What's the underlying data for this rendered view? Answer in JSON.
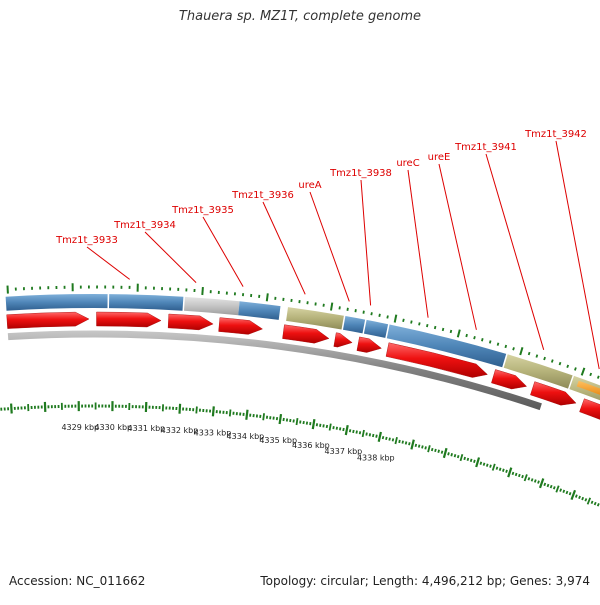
{
  "title": "Thauera sp. MZ1T, complete genome",
  "footer": {
    "accession": "Accession: NC_011662",
    "summary": "Topology: circular; Length: 4,496,212 bp; Genes: 3,974"
  },
  "scale_labels": [
    "4329 kbp",
    "4330 kbp",
    "4331 kbp",
    "4332 kbp",
    "4333 kbp",
    "4334 kbp",
    "4335 kbp",
    "4336 kbp",
    "4337 kbp",
    "4338 kbp"
  ],
  "gene_labels": [
    "Tmz1t_3933",
    "Tmz1t_3934",
    "Tmz1t_3935",
    "Tmz1t_3936",
    "ureA",
    "Tmz1t_3938",
    "ureC",
    "ureE",
    "Tmz1t_3941",
    "Tmz1t_3942"
  ],
  "colors": {
    "cds_feature": "#4f86b8",
    "gene_feature": "#b5b27a",
    "misc_feature": "#c0c0c0",
    "highlight_feature": "#f08c00",
    "orf_arrow": "#ee1111",
    "backbone": "#7f7f7f",
    "tick": "#1f7a1f",
    "label": "#dd0000"
  }
}
